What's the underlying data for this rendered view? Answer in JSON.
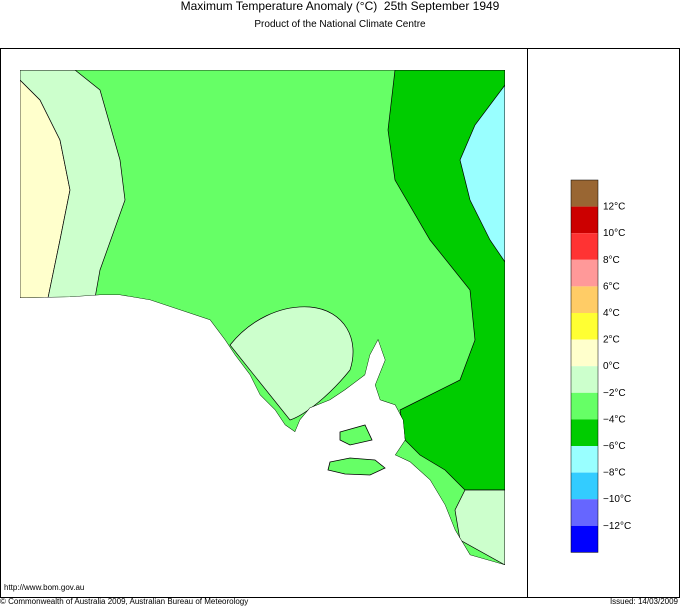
{
  "header": {
    "title": "Maximum Temperature Anomaly (°C)  25th September 1949",
    "subtitle": "Product of the National Climate Centre"
  },
  "legend": {
    "colors": [
      "#996633",
      "#cc0000",
      "#ff3333",
      "#ff9999",
      "#ffcc66",
      "#ffff33",
      "#ffffcc",
      "#ccffcc",
      "#66ff66",
      "#00cc00",
      "#99ffff",
      "#33ccff",
      "#6666ff",
      "#0000ff"
    ],
    "labels": [
      "12°C",
      "10°C",
      "8°C",
      "6°C",
      "4°C",
      "2°C",
      "0°C",
      "−2°C",
      "−4°C",
      "−6°C",
      "−8°C",
      "−10°C",
      "−12°C"
    ]
  },
  "footer": {
    "url": "http://www.bom.gov.au",
    "copyright": "© Commonwealth of Australia 2009, Australian Bureau of Meteorology",
    "issued": "Issued: 14/03/2009"
  }
}
